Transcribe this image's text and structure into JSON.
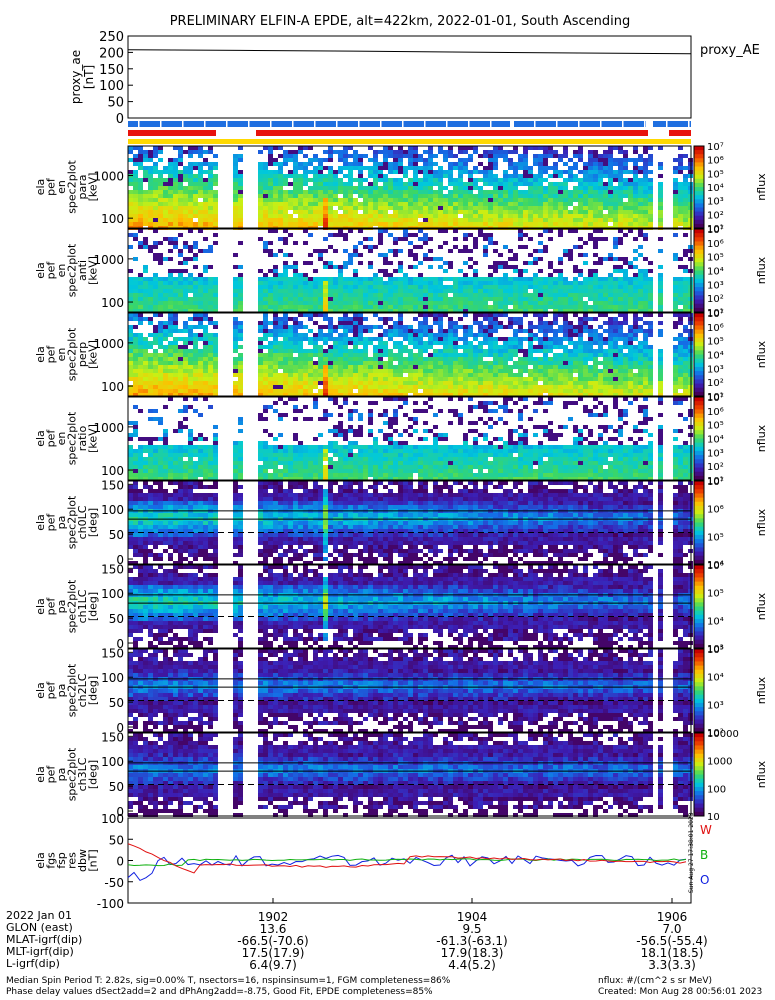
{
  "title": "PRELIMINARY ELFIN-A EPDE, alt=422km, 2022-01-01, South Ascending",
  "colors": {
    "ae_line": "#000000",
    "bar_blue": "#1f6fe0",
    "bar_red": "#e8120c",
    "bar_yellow": "#ffd900",
    "fgs_w": "#e01010",
    "fgs_b": "#10b010",
    "fgs_o": "#1020e0"
  },
  "chart_data": [
    {
      "type": "line",
      "panel": "proxy_ae",
      "ylabel": [
        "proxy_ae",
        "[nT]"
      ],
      "series_label": "proxy_AE",
      "yticks": [
        "250",
        "200",
        "150",
        "100",
        "50",
        "0"
      ],
      "ylim": [
        0,
        250
      ],
      "x": [
        0,
        0.2,
        0.4,
        0.6,
        0.8,
        1.0
      ],
      "y": [
        208,
        206,
        204,
        201,
        198,
        196
      ]
    },
    {
      "type": "heatmap",
      "panel": "pef_en_para",
      "ylabel": [
        "ela",
        "pef",
        "en",
        "spec2plot",
        "para",
        "[keV]"
      ],
      "yticks": [
        "1000",
        "100"
      ],
      "colorbar": {
        "label": "nflux",
        "ticks": [
          "10⁷",
          "10⁶",
          "10⁵",
          "10⁴",
          "10³",
          "10²",
          "10¹"
        ]
      }
    },
    {
      "type": "heatmap",
      "panel": "pef_en_anti",
      "ylabel": [
        "ela",
        "pef",
        "en",
        "spec2plot",
        "anti",
        "[keV]"
      ],
      "yticks": [
        "1000",
        "100"
      ],
      "colorbar": {
        "label": "nflux",
        "ticks": [
          "10⁷",
          "10⁶",
          "10⁵",
          "10⁴",
          "10³",
          "10²",
          "10¹"
        ]
      }
    },
    {
      "type": "heatmap",
      "panel": "pef_en_perp",
      "ylabel": [
        "ela",
        "pef",
        "en",
        "spec2plot",
        "perp",
        "[keV]"
      ],
      "yticks": [
        "1000",
        "100"
      ],
      "colorbar": {
        "label": "nflux",
        "ticks": [
          "10⁷",
          "10⁶",
          "10⁵",
          "10⁴",
          "10³",
          "10²",
          "10¹"
        ]
      }
    },
    {
      "type": "heatmap",
      "panel": "pef_en_ratio",
      "ylabel": [
        "ela",
        "pef",
        "en",
        "spec2plot",
        "ratio",
        "[keV]"
      ],
      "yticks": [
        "1000",
        "100"
      ],
      "colorbar": {
        "label": "nflux",
        "ticks": [
          "10⁷",
          "10⁶",
          "10⁵",
          "10⁴",
          "10³",
          "10²",
          "10¹"
        ]
      }
    },
    {
      "type": "heatmap",
      "panel": "pef_pa_ch0LC",
      "ylabel": [
        "ela",
        "pef",
        "pa",
        "spec2plot",
        "ch0LC",
        "[deg]"
      ],
      "yticks": [
        "150",
        "100",
        "50",
        "0"
      ],
      "colorbar": {
        "label": "nflux",
        "ticks": [
          "10⁷",
          "10⁶",
          "10⁵",
          "10⁴"
        ]
      }
    },
    {
      "type": "heatmap",
      "panel": "pef_pa_ch1LC",
      "ylabel": [
        "ela",
        "pef",
        "pa",
        "spec2plot",
        "ch1LC",
        "[deg]"
      ],
      "yticks": [
        "150",
        "100",
        "50",
        "0"
      ],
      "colorbar": {
        "label": "nflux",
        "ticks": [
          "10⁶",
          "10⁵",
          "10⁴",
          "10³"
        ]
      }
    },
    {
      "type": "heatmap",
      "panel": "pef_pa_ch2LC",
      "ylabel": [
        "ela",
        "pef",
        "pa",
        "spec2plot",
        "ch2LC",
        "[deg]"
      ],
      "yticks": [
        "150",
        "100",
        "50",
        "0"
      ],
      "colorbar": {
        "label": "nflux",
        "ticks": [
          "10⁵",
          "10⁴",
          "10³",
          "10²"
        ]
      }
    },
    {
      "type": "heatmap",
      "panel": "pef_pa_ch3LC",
      "ylabel": [
        "ela",
        "pef",
        "pa",
        "spec2plot",
        "ch3LC",
        "[deg]"
      ],
      "yticks": [
        "150",
        "100",
        "50",
        "0"
      ],
      "colorbar": {
        "label": "nflux",
        "ticks": [
          "10000",
          "1000",
          "100",
          "10"
        ]
      }
    },
    {
      "type": "line",
      "panel": "fgs_res_dbw",
      "ylabel": [
        "ela",
        "fgs",
        "fsp",
        "res",
        "dbw",
        "[nT]"
      ],
      "yticks": [
        "100",
        "50",
        "0",
        "-50",
        "-100"
      ],
      "ylim": [
        -100,
        100
      ],
      "legend": [
        "W",
        "B",
        "O"
      ]
    }
  ],
  "side_stamp": "Sun Aug 27 17:38:01 2023",
  "xaxis": {
    "ticks": [
      "1902",
      "1904",
      "1906"
    ],
    "rows": [
      {
        "label": "2022 Jan 01",
        "values": [
          "",
          "",
          ""
        ]
      },
      {
        "label": "GLON (east)",
        "values": [
          "13.6",
          "9.5",
          "7.0"
        ]
      },
      {
        "label": "MLAT-igrf(dip)",
        "values": [
          "-66.5(-70.6)",
          "-61.3(-63.1)",
          "-56.5(-55.4)"
        ]
      },
      {
        "label": "MLT-igrf(dip)",
        "values": [
          "17.5(17.9)",
          "17.9(18.3)",
          "18.1(18.5)"
        ]
      },
      {
        "label": "L-igrf(dip)",
        "values": [
          "6.4(9.7)",
          "4.4(5.2)",
          "3.3(3.3)"
        ]
      }
    ]
  },
  "footer": {
    "line1": "Median Spin Period T: 2.82s, sig=0.00% T, nsectors=16, nspinsinsum=1, FGM completeness=86%",
    "line2": "Phase delay values dSect2add=2 and dPhAng2add=-8.75, Good Fit, EPDE completeness=85%",
    "units": "nflux: #/(cm^2 s sr MeV)",
    "created": "Created: Mon Aug 28 00:56:01 2023"
  }
}
